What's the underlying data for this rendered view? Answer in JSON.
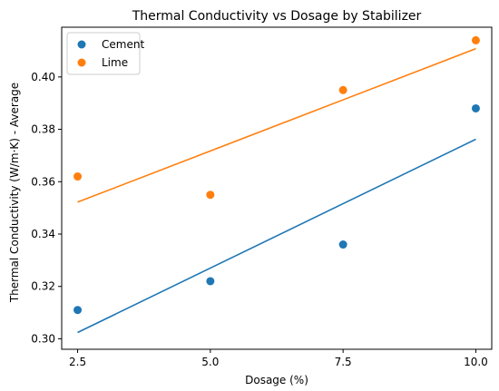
{
  "chart_data": {
    "type": "scatter",
    "title": "Thermal Conductivity vs Dosage by Stabilizer",
    "xlabel": "Dosage (%)",
    "ylabel": "Thermal Conductivity (W/m·K) - Average",
    "xlim": [
      2.2,
      10.3
    ],
    "ylim": [
      0.296,
      0.419
    ],
    "x_ticks": [
      2.5,
      5.0,
      7.5,
      10.0
    ],
    "x_tick_labels": [
      "2.5",
      "5.0",
      "7.5",
      "10.0"
    ],
    "y_ticks": [
      0.3,
      0.32,
      0.34,
      0.36,
      0.38,
      0.4
    ],
    "y_tick_labels": [
      "0.30",
      "0.32",
      "0.34",
      "0.36",
      "0.38",
      "0.40"
    ],
    "grid": false,
    "legend_position": "top-left",
    "series": [
      {
        "name": "Cement",
        "color": "#1f77b4",
        "points": [
          {
            "x": 2.5,
            "y": 0.311
          },
          {
            "x": 5.0,
            "y": 0.322
          },
          {
            "x": 7.5,
            "y": 0.336
          },
          {
            "x": 10.0,
            "y": 0.388
          }
        ],
        "trendline": {
          "x": [
            2.5,
            10.0
          ],
          "y": [
            0.3024,
            0.3762
          ]
        }
      },
      {
        "name": "Lime",
        "color": "#ff7f0e",
        "points": [
          {
            "x": 2.5,
            "y": 0.362
          },
          {
            "x": 5.0,
            "y": 0.355
          },
          {
            "x": 7.5,
            "y": 0.395
          },
          {
            "x": 10.0,
            "y": 0.414
          }
        ],
        "trendline": {
          "x": [
            2.5,
            10.0
          ],
          "y": [
            0.3522,
            0.4108
          ]
        }
      }
    ]
  }
}
